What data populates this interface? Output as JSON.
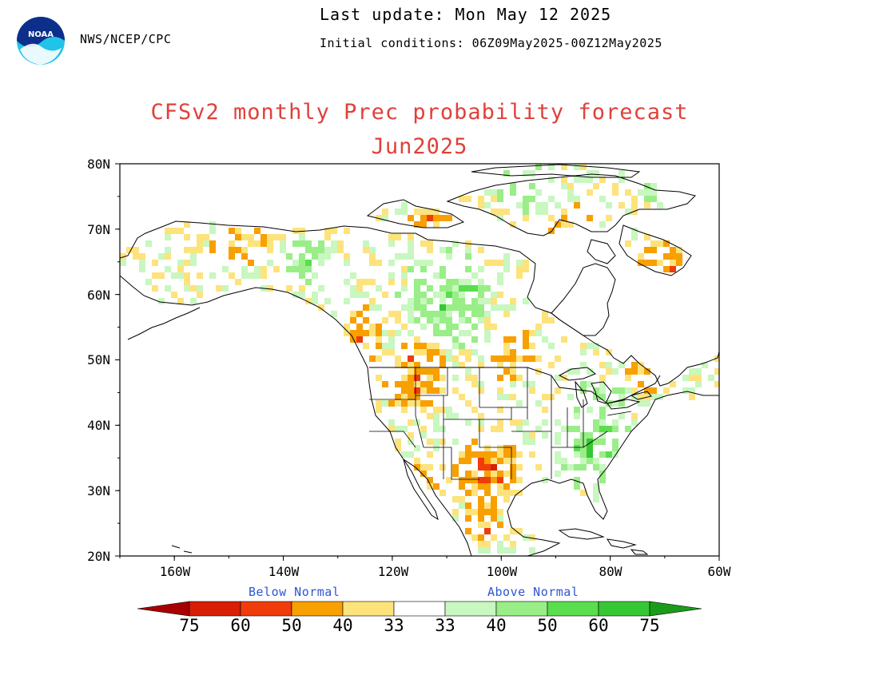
{
  "header": {
    "agency": "NWS/NCEP/CPC",
    "last_update": "Last update: Mon May 12 2025",
    "initial_conditions": "Initial conditions: 06Z09May2025-00Z12May2025",
    "logo_text": "NOAA"
  },
  "title": "CFSv2 monthly Prec probability forecast",
  "subtitle": "Jun2025",
  "map": {
    "lat_range": [
      20,
      80
    ],
    "lon_range": [
      -170,
      -60
    ],
    "lat_ticks": [
      "80N",
      "70N",
      "60N",
      "50N",
      "40N",
      "30N",
      "20N"
    ],
    "lon_ticks": [
      "160W",
      "140W",
      "120W",
      "100W",
      "80W",
      "60W"
    ],
    "lat_tick_values": [
      80,
      70,
      60,
      50,
      40,
      30,
      20
    ],
    "lon_tick_values": [
      -160,
      -140,
      -120,
      -100,
      -80,
      -60
    ]
  },
  "colorbar": {
    "below_label": "Below Normal",
    "above_label": "Above Normal",
    "labels": [
      "75",
      "60",
      "50",
      "40",
      "33",
      "33",
      "40",
      "50",
      "60",
      "75"
    ],
    "colors": {
      "below": [
        "#a80000",
        "#d81e05",
        "#f03c0a",
        "#f7a000",
        "#fde37c"
      ],
      "neutral": "#ffffff",
      "above": [
        "#c8f7c0",
        "#9aee88",
        "#5ade4e",
        "#36c834",
        "#1a9c1a"
      ]
    }
  }
}
